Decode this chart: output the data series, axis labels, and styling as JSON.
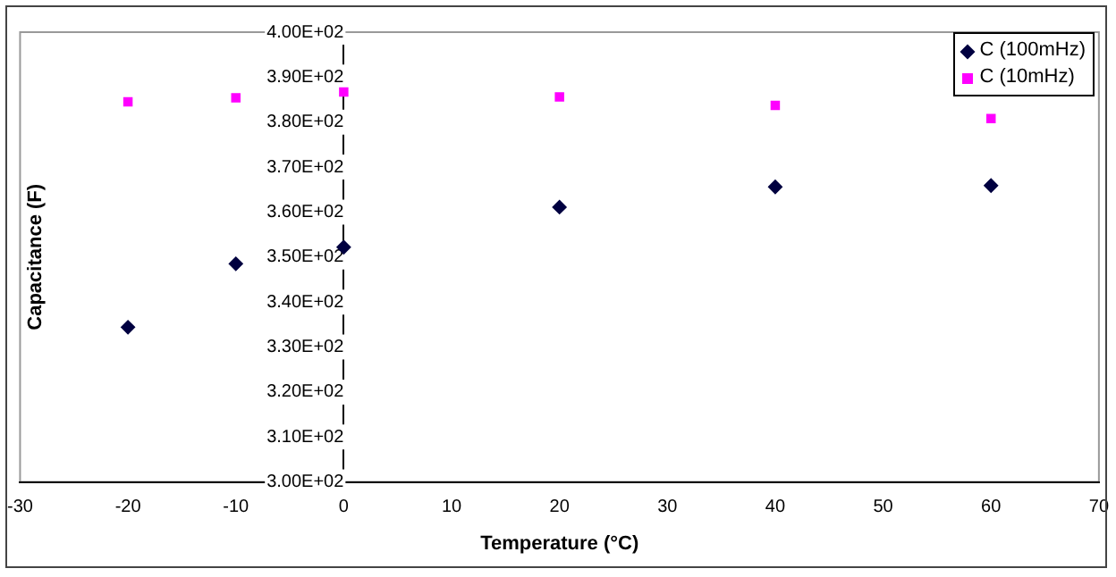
{
  "chart_data": {
    "type": "scatter",
    "xlabel": "Temperature (°C)",
    "ylabel": "Capacitance (F)",
    "xlim": [
      -30,
      70
    ],
    "xticks": [
      -30,
      -20,
      -10,
      0,
      10,
      20,
      30,
      40,
      50,
      60,
      70
    ],
    "ylim": [
      300,
      400
    ],
    "yticks": [
      {
        "value": 300,
        "label": "3.00E+02"
      },
      {
        "value": 310,
        "label": "3.10E+02"
      },
      {
        "value": 320,
        "label": "3.20E+02"
      },
      {
        "value": 330,
        "label": "3.30E+02"
      },
      {
        "value": 340,
        "label": "3.40E+02"
      },
      {
        "value": 350,
        "label": "3.50E+02"
      },
      {
        "value": 360,
        "label": "3.60E+02"
      },
      {
        "value": 370,
        "label": "3.70E+02"
      },
      {
        "value": 380,
        "label": "3.80E+02"
      },
      {
        "value": 390,
        "label": "3.90E+02"
      },
      {
        "value": 400,
        "label": "4.00E+02"
      }
    ],
    "grid": false,
    "legend": "top right",
    "series": [
      {
        "name": "C (100mHz)",
        "color": "#000040",
        "marker": "diamond",
        "x": [
          -20,
          -10,
          0,
          20,
          40,
          60
        ],
        "values": [
          334.4,
          348.5,
          352.2,
          361.1,
          365.6,
          365.9
        ]
      },
      {
        "name": "C (10mHz)",
        "color": "#ff00ff",
        "marker": "square",
        "x": [
          -20,
          -10,
          0,
          20,
          40,
          60
        ],
        "values": [
          384.5,
          385.4,
          386.7,
          385.6,
          383.7,
          380.8
        ]
      }
    ]
  }
}
